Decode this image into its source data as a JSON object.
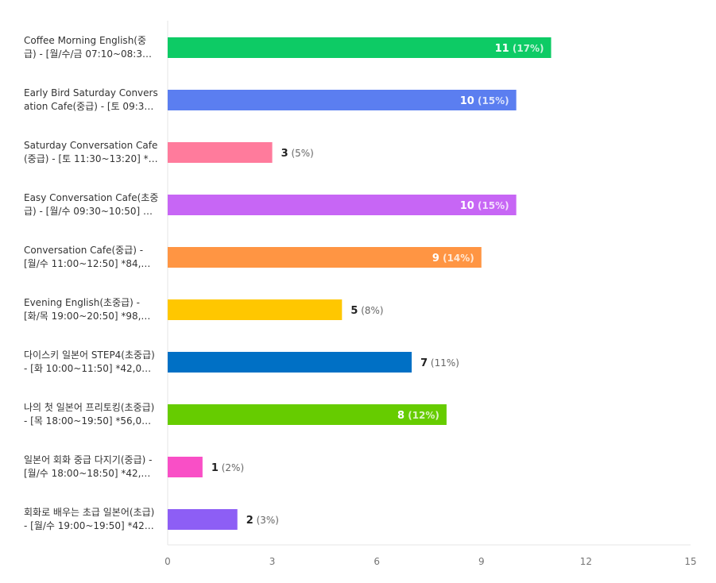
{
  "chart_data": {
    "type": "bar",
    "orientation": "horizontal",
    "categories": [
      [
        "Coffee Morning English(중",
        "급) - [월/수/금 07:10~08:3…"
      ],
      [
        "Early Bird Saturday Convers",
        "ation Cafe(중급) - [토 09:3…"
      ],
      [
        "Saturday Conversation Cafe",
        "(중급) - [토 11:30~13:20] *…"
      ],
      [
        "Easy Conversation Cafe(초중",
        "급) - [월/수 09:30~10:50] …"
      ],
      [
        "Conversation Cafe(중급) -",
        "[월/수 11:00~12:50] *84,…"
      ],
      [
        "Evening English(초중급) -",
        "[화/목 19:00~20:50] *98,…"
      ],
      [
        "다이스키 일본어 STEP4(초중급)",
        "- [화 10:00~11:50] *42,0…"
      ],
      [
        "나의 첫 일본어 프리토킹(초중급)",
        "- [목 18:00~19:50] *56,0…"
      ],
      [
        "일본어 회화 중급 다지기(중급) -",
        "[월/수 18:00~18:50] *42,…"
      ],
      [
        "회화로 배우는 초급 일본어(초급)",
        "- [월/수 19:00~19:50] *42…"
      ]
    ],
    "values": [
      11,
      10,
      3,
      10,
      9,
      5,
      7,
      8,
      1,
      2
    ],
    "percent_labels": [
      "(17%)",
      "(15%)",
      "(5%)",
      "(15%)",
      "(14%)",
      "(8%)",
      "(11%)",
      "(12%)",
      "(2%)",
      "(3%)"
    ],
    "colors": [
      "#0dcb65",
      "#5b7ef0",
      "#ff7b9c",
      "#c766f5",
      "#ff9543",
      "#ffc700",
      "#0070c5",
      "#66cc00",
      "#f94fc6",
      "#8d5ef5"
    ],
    "xticks": [
      "0",
      "3",
      "6",
      "9",
      "12",
      "15"
    ],
    "xlim": [
      0,
      15
    ],
    "grid": false
  }
}
